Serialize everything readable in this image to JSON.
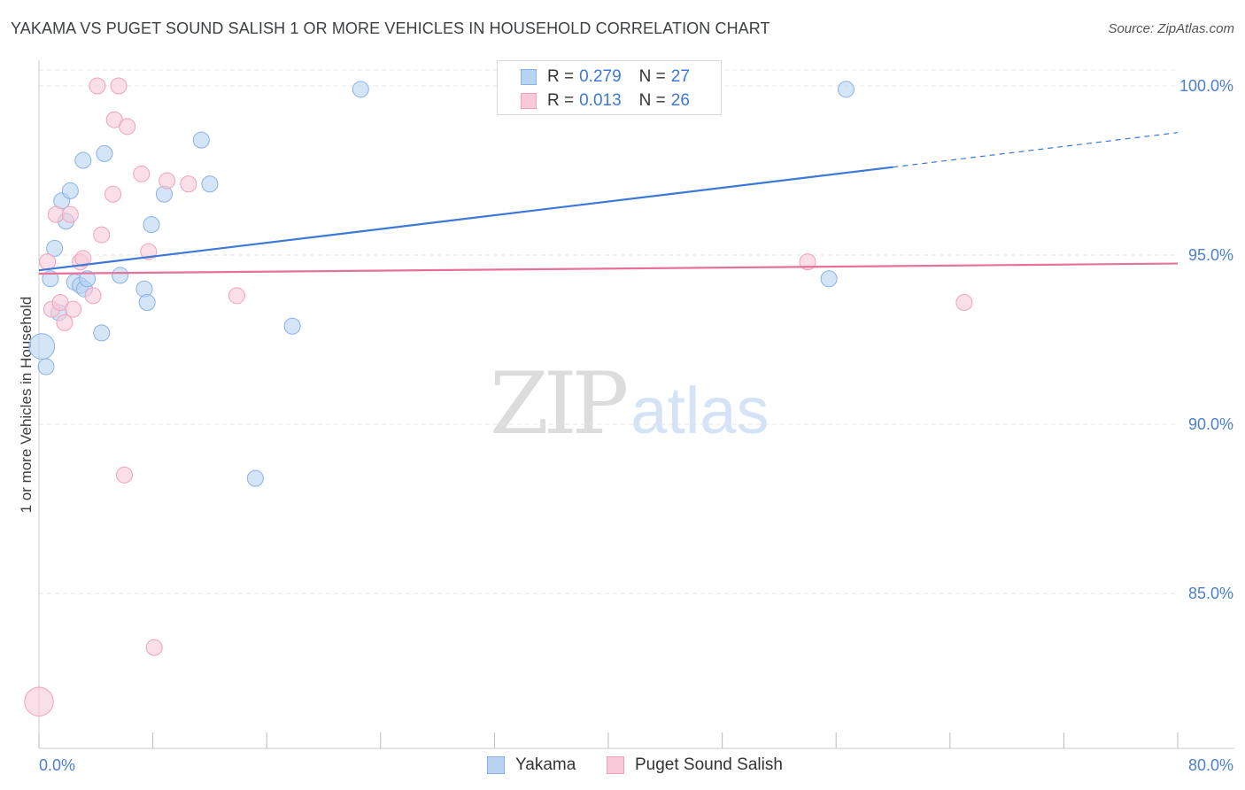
{
  "title": "YAKAMA VS PUGET SOUND SALISH 1 OR MORE VEHICLES IN HOUSEHOLD CORRELATION CHART",
  "source": "Source: ZipAtlas.com",
  "watermark": {
    "zip": "ZIP",
    "atlas": "atlas"
  },
  "legend_top": {
    "rows": [
      {
        "r_label": "R =",
        "r_value": "0.279",
        "n_label": "N =",
        "n_value": "27"
      },
      {
        "r_label": "R =",
        "r_value": "0.013",
        "n_label": "N =",
        "n_value": "26"
      }
    ]
  },
  "legend_bottom": {
    "items": [
      "Yakama",
      "Puget Sound Salish"
    ]
  },
  "colors": {
    "blue_fill": "#b9d3f3",
    "blue_stroke": "#8ab1e6",
    "blue_line": "#3c78d8",
    "pink_fill": "#f8c9d8",
    "pink_stroke": "#f0a1bb",
    "pink_line": "#e8719a",
    "grid": "#e6e6e6",
    "tick": "#4a7fd4"
  },
  "chart_data": {
    "type": "scatter",
    "title": "YAKAMA VS PUGET SOUND SALISH 1 OR MORE VEHICLES IN HOUSEHOLD CORRELATION CHART",
    "xlabel": "",
    "ylabel": "1 or more Vehicles in Household",
    "xlim": [
      0,
      80
    ],
    "ylim": [
      80.5,
      101
    ],
    "x_tick_labels": [
      "0.0%",
      "80.0%"
    ],
    "y_ticks": [
      85,
      90,
      95,
      100
    ],
    "y_tick_labels": [
      "85.0%",
      "90.0%",
      "95.0%",
      "100.0%"
    ],
    "grid": true,
    "series": [
      {
        "name": "Yakama",
        "color": "blue",
        "r": 0.279,
        "n": 27,
        "points": [
          {
            "x": 0.2,
            "y": 92.3,
            "size": 1.6
          },
          {
            "x": 0.5,
            "y": 91.7,
            "size": 1.0
          },
          {
            "x": 0.8,
            "y": 94.3,
            "size": 1.0
          },
          {
            "x": 1.1,
            "y": 95.2,
            "size": 1.0
          },
          {
            "x": 1.4,
            "y": 93.3,
            "size": 1.0
          },
          {
            "x": 1.6,
            "y": 96.6,
            "size": 1.0
          },
          {
            "x": 1.9,
            "y": 96.0,
            "size": 1.0
          },
          {
            "x": 2.2,
            "y": 96.9,
            "size": 1.0
          },
          {
            "x": 2.5,
            "y": 94.2,
            "size": 1.0
          },
          {
            "x": 2.9,
            "y": 94.1,
            "size": 1.0
          },
          {
            "x": 3.1,
            "y": 97.8,
            "size": 1.0
          },
          {
            "x": 3.2,
            "y": 94.0,
            "size": 1.0
          },
          {
            "x": 3.4,
            "y": 94.3,
            "size": 1.0
          },
          {
            "x": 4.4,
            "y": 92.7,
            "size": 1.0
          },
          {
            "x": 4.6,
            "y": 98.0,
            "size": 1.0
          },
          {
            "x": 5.7,
            "y": 94.4,
            "size": 1.0
          },
          {
            "x": 7.4,
            "y": 94.0,
            "size": 1.0
          },
          {
            "x": 7.6,
            "y": 93.6,
            "size": 1.0
          },
          {
            "x": 7.9,
            "y": 95.9,
            "size": 1.0
          },
          {
            "x": 8.8,
            "y": 96.8,
            "size": 1.0
          },
          {
            "x": 11.4,
            "y": 98.4,
            "size": 1.0
          },
          {
            "x": 12.0,
            "y": 97.1,
            "size": 1.0
          },
          {
            "x": 15.2,
            "y": 88.4,
            "size": 1.0
          },
          {
            "x": 17.8,
            "y": 92.9,
            "size": 1.0
          },
          {
            "x": 22.6,
            "y": 99.9,
            "size": 1.0
          },
          {
            "x": 55.5,
            "y": 94.3,
            "size": 1.0
          },
          {
            "x": 56.7,
            "y": 99.9,
            "size": 1.0
          }
        ],
        "trend": {
          "x1": 0.0,
          "y1": 94.55,
          "x2": 60.0,
          "y2": 97.6,
          "dash_to_x": 80.0,
          "dash_to_y": 98.62
        }
      },
      {
        "name": "Puget Sound Salish",
        "color": "pink",
        "r": 0.013,
        "n": 26,
        "points": [
          {
            "x": 0.0,
            "y": 81.8,
            "size": 1.8
          },
          {
            "x": 0.6,
            "y": 94.8,
            "size": 1.0
          },
          {
            "x": 0.9,
            "y": 93.4,
            "size": 1.0
          },
          {
            "x": 1.2,
            "y": 96.2,
            "size": 1.0
          },
          {
            "x": 1.5,
            "y": 93.6,
            "size": 1.0
          },
          {
            "x": 1.8,
            "y": 93.0,
            "size": 1.0
          },
          {
            "x": 2.2,
            "y": 96.2,
            "size": 1.0
          },
          {
            "x": 2.4,
            "y": 93.4,
            "size": 1.0
          },
          {
            "x": 2.9,
            "y": 94.8,
            "size": 1.0
          },
          {
            "x": 3.1,
            "y": 94.9,
            "size": 1.0
          },
          {
            "x": 3.8,
            "y": 93.8,
            "size": 1.0
          },
          {
            "x": 4.1,
            "y": 100.0,
            "size": 1.0
          },
          {
            "x": 4.4,
            "y": 95.6,
            "size": 1.0
          },
          {
            "x": 5.2,
            "y": 96.8,
            "size": 1.0
          },
          {
            "x": 5.3,
            "y": 99.0,
            "size": 1.0
          },
          {
            "x": 5.6,
            "y": 100.0,
            "size": 1.0
          },
          {
            "x": 6.0,
            "y": 88.5,
            "size": 1.0
          },
          {
            "x": 6.2,
            "y": 98.8,
            "size": 1.0
          },
          {
            "x": 7.2,
            "y": 97.4,
            "size": 1.0
          },
          {
            "x": 7.7,
            "y": 95.1,
            "size": 1.0
          },
          {
            "x": 8.1,
            "y": 83.4,
            "size": 1.0
          },
          {
            "x": 9.0,
            "y": 97.2,
            "size": 1.0
          },
          {
            "x": 10.5,
            "y": 97.1,
            "size": 1.0
          },
          {
            "x": 13.9,
            "y": 93.8,
            "size": 1.0
          },
          {
            "x": 54.0,
            "y": 94.8,
            "size": 1.0
          },
          {
            "x": 65.0,
            "y": 93.6,
            "size": 1.0
          }
        ],
        "trend": {
          "x1": 0.0,
          "y1": 94.45,
          "x2": 80.0,
          "y2": 94.75
        }
      }
    ]
  }
}
